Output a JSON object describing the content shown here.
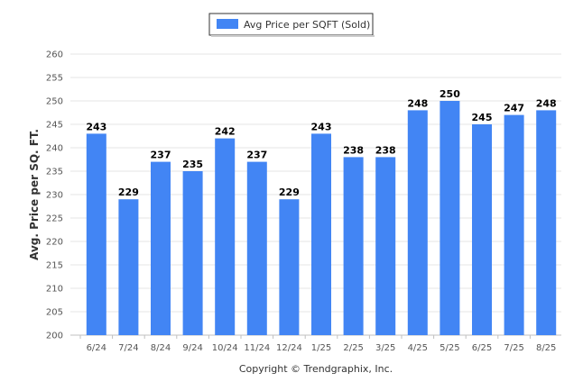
{
  "chart_data": {
    "type": "bar",
    "categories": [
      "6/24",
      "7/24",
      "8/24",
      "9/24",
      "10/24",
      "11/24",
      "12/24",
      "1/25",
      "2/25",
      "3/25",
      "4/25",
      "5/25",
      "6/25",
      "7/25",
      "8/25"
    ],
    "series": [
      {
        "name": "Avg Price per SQFT (Sold)",
        "values": [
          243,
          229,
          237,
          235,
          242,
          237,
          229,
          243,
          238,
          238,
          248,
          250,
          245,
          247,
          248
        ],
        "color": "#4285f4"
      }
    ],
    "ylabel": "Avg. Price per SQ. FT.",
    "xlabel": "",
    "ylim": [
      200,
      260
    ],
    "yticks": [
      200,
      205,
      210,
      215,
      220,
      225,
      230,
      235,
      240,
      245,
      250,
      255,
      260
    ],
    "grid": true,
    "legend_position": "top-center",
    "data_labels": true
  },
  "footer": {
    "copyright": "Copyright © Trendgraphix, Inc."
  },
  "colors": {
    "bar": "#4285f4",
    "grid": "#e6e6e6",
    "axis": "#c0c0c0"
  }
}
